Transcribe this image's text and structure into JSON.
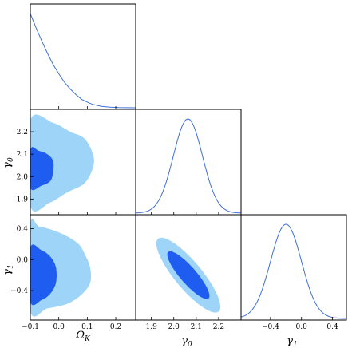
{
  "chart_data": {
    "type": "corner",
    "parameters": [
      {
        "symbol": "Ω",
        "subscript": "K"
      },
      {
        "symbol": "γ",
        "subscript": "0"
      },
      {
        "symbol": "γ",
        "subscript": "1"
      }
    ],
    "ranges": [
      [
        -0.1,
        0.27
      ],
      [
        1.83,
        2.3
      ],
      [
        -0.78,
        0.58
      ]
    ],
    "ticks": [
      {
        "values": [
          -0.1,
          0.0,
          0.1,
          0.2
        ],
        "labels": [
          "−0.1",
          "0.0",
          "0.1",
          "0.2"
        ]
      },
      {
        "values": [
          1.9,
          2.0,
          2.1,
          2.2
        ],
        "labels": [
          "1.9",
          "2.0",
          "2.1",
          "2.2"
        ]
      },
      {
        "values": [
          -0.4,
          0.0,
          0.4
        ],
        "labels": [
          "−0.4",
          "0.0",
          "0.4"
        ]
      }
    ],
    "colors": {
      "contour_68": "#1f5cf0",
      "contour_95": "#9dd4f7",
      "pdf_line": "#3d6fd6",
      "frame": "#000000"
    },
    "diagonal": [
      {
        "x": [
          -0.1,
          -0.08,
          -0.06,
          -0.04,
          -0.02,
          0.0,
          0.02,
          0.04,
          0.06,
          0.08,
          0.1,
          0.12,
          0.15,
          0.18,
          0.21,
          0.24,
          0.27
        ],
        "y": [
          1.0,
          0.85,
          0.71,
          0.58,
          0.46,
          0.36,
          0.27,
          0.2,
          0.14,
          0.09,
          0.06,
          0.035,
          0.015,
          0.006,
          0.002,
          0.0005,
          0.0
        ]
      },
      {
        "gaussian": {
          "mean": 2.063,
          "sd": 0.065
        }
      },
      {
        "gaussian": {
          "mean": -0.2,
          "sd": 0.2
        }
      }
    ],
    "joint": [
      {
        "pair": [
          0,
          1
        ],
        "contour_95": [
          [
            -0.1,
            1.87
          ],
          [
            -0.03,
            1.885
          ],
          [
            0.03,
            1.93
          ],
          [
            0.09,
            1.97
          ],
          [
            0.12,
            2.04
          ],
          [
            0.12,
            2.1
          ],
          [
            0.09,
            2.17
          ],
          [
            0.04,
            2.2
          ],
          [
            -0.02,
            2.24
          ],
          [
            -0.1,
            2.25
          ]
        ],
        "contour_68": [
          [
            -0.1,
            1.95
          ],
          [
            -0.06,
            1.96
          ],
          [
            -0.03,
            1.98
          ],
          [
            -0.02,
            2.02
          ],
          [
            -0.02,
            2.07
          ],
          [
            -0.04,
            2.1
          ],
          [
            -0.07,
            2.115
          ],
          [
            -0.1,
            2.12
          ]
        ]
      },
      {
        "pair": [
          0,
          2
        ],
        "contour_95": [
          [
            -0.1,
            -0.66
          ],
          [
            -0.04,
            -0.63
          ],
          [
            0.03,
            -0.57
          ],
          [
            0.08,
            -0.45
          ],
          [
            0.11,
            -0.3
          ],
          [
            0.11,
            -0.1
          ],
          [
            0.09,
            0.08
          ],
          [
            0.07,
            0.2
          ],
          [
            0.03,
            0.3
          ],
          [
            -0.02,
            0.38
          ],
          [
            -0.07,
            0.43
          ],
          [
            -0.1,
            0.45
          ]
        ],
        "contour_68": [
          [
            -0.1,
            -0.54
          ],
          [
            -0.06,
            -0.52
          ],
          [
            -0.03,
            -0.44
          ],
          [
            -0.01,
            -0.3
          ],
          [
            -0.01,
            -0.1
          ],
          [
            -0.03,
            0.04
          ],
          [
            -0.06,
            0.12
          ],
          [
            -0.1,
            0.15
          ]
        ]
      },
      {
        "pair": [
          1,
          2
        ],
        "ellipse_95": {
          "center": [
            2.065,
            -0.2
          ],
          "half_length_dir": [
            0.135,
            -0.47
          ],
          "half_width": [
            0.045,
            0.0
          ]
        },
        "ellipse_68": {
          "center": [
            2.065,
            -0.2
          ],
          "half_length_dir": [
            0.09,
            -0.3
          ],
          "half_width": [
            0.027,
            0.0
          ]
        }
      }
    ]
  }
}
